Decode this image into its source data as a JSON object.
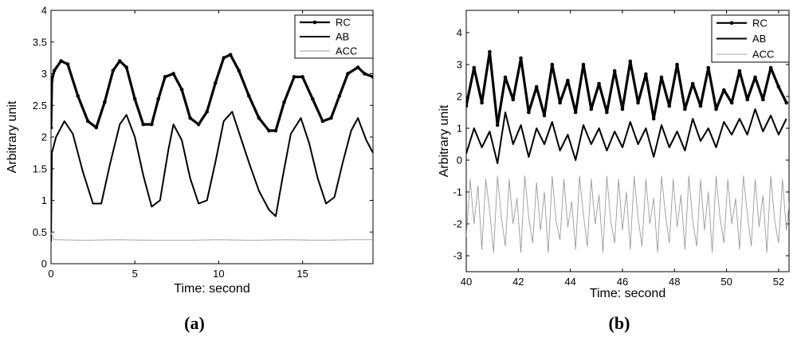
{
  "chart_data": [
    {
      "type": "line",
      "panel_label": "(a)",
      "xlabel": "Time: second",
      "ylabel": "Arbitrary unit",
      "xlim": [
        0,
        19.2
      ],
      "ylim": [
        0,
        4
      ],
      "xticks": [
        "0",
        "5",
        "10",
        "15"
      ],
      "yticks": [
        "0",
        "0.5",
        "1",
        "1.5",
        "2",
        "2.5",
        "3",
        "3.5",
        "4"
      ],
      "legend_position": "top-right",
      "series": [
        {
          "name": "RC",
          "style": "thick line with dot markers",
          "x": [
            0.0,
            0.05,
            0.2,
            0.6,
            1.0,
            1.6,
            2.2,
            2.7,
            3.2,
            3.7,
            4.1,
            4.5,
            5.0,
            5.5,
            6.0,
            6.4,
            6.8,
            7.3,
            7.8,
            8.3,
            8.8,
            9.3,
            9.8,
            10.3,
            10.7,
            11.2,
            11.8,
            12.4,
            13.0,
            13.4,
            13.9,
            14.5,
            15.0,
            15.6,
            16.2,
            16.7,
            17.2,
            17.7,
            18.3,
            18.7,
            19.2
          ],
          "values": [
            2.15,
            2.9,
            3.05,
            3.2,
            3.15,
            2.65,
            2.25,
            2.15,
            2.55,
            3.05,
            3.2,
            3.1,
            2.6,
            2.2,
            2.2,
            2.6,
            2.95,
            3.0,
            2.75,
            2.3,
            2.2,
            2.4,
            2.85,
            3.25,
            3.3,
            3.05,
            2.65,
            2.3,
            2.1,
            2.1,
            2.55,
            2.95,
            2.95,
            2.6,
            2.25,
            2.3,
            2.65,
            3.0,
            3.1,
            3.0,
            2.95
          ]
        },
        {
          "name": "AB",
          "style": "solid line",
          "x": [
            0.0,
            0.05,
            0.3,
            0.8,
            1.3,
            1.9,
            2.5,
            3.0,
            3.5,
            4.1,
            4.5,
            5.0,
            5.5,
            6.0,
            6.5,
            7.0,
            7.3,
            7.8,
            8.3,
            8.8,
            9.3,
            9.8,
            10.3,
            10.8,
            11.3,
            11.8,
            12.4,
            13.0,
            13.4,
            13.8,
            14.3,
            14.9,
            15.4,
            15.9,
            16.4,
            16.9,
            17.4,
            17.9,
            18.3,
            18.8,
            19.2
          ],
          "values": [
            0.35,
            1.75,
            2.0,
            2.25,
            2.05,
            1.45,
            0.95,
            0.95,
            1.55,
            2.2,
            2.35,
            2.0,
            1.4,
            0.9,
            1.0,
            1.8,
            2.2,
            1.95,
            1.35,
            0.95,
            1.0,
            1.6,
            2.25,
            2.4,
            2.0,
            1.6,
            1.15,
            0.85,
            0.75,
            1.35,
            2.05,
            2.3,
            1.9,
            1.35,
            0.95,
            1.05,
            1.6,
            2.1,
            2.3,
            1.95,
            1.75
          ]
        },
        {
          "name": "ACC",
          "style": "thin light line",
          "x": [
            0.0,
            0.05,
            0.2,
            2.0,
            4.0,
            6.0,
            8.0,
            10.0,
            12.0,
            14.0,
            16.0,
            18.0,
            19.2
          ],
          "values": [
            0.5,
            0.45,
            0.38,
            0.37,
            0.38,
            0.37,
            0.37,
            0.38,
            0.37,
            0.38,
            0.37,
            0.38,
            0.38
          ]
        }
      ]
    },
    {
      "type": "line",
      "panel_label": "(b)",
      "xlabel": "Time: second",
      "ylabel": "Arbitrary unit",
      "xlim": [
        40,
        52.4
      ],
      "ylim": [
        -3.5,
        4.7
      ],
      "xticks": [
        "40",
        "42",
        "44",
        "46",
        "48",
        "50",
        "52"
      ],
      "yticks": [
        "-3",
        "-2",
        "-1",
        "0",
        "1",
        "2",
        "3",
        "4"
      ],
      "legend_position": "top-right",
      "series": [
        {
          "name": "RC",
          "style": "thick line with dot markers",
          "x": [
            40.0,
            40.3,
            40.6,
            40.9,
            41.2,
            41.5,
            41.8,
            42.1,
            42.4,
            42.7,
            43.0,
            43.3,
            43.6,
            43.9,
            44.2,
            44.5,
            44.8,
            45.1,
            45.4,
            45.7,
            46.0,
            46.3,
            46.6,
            46.9,
            47.2,
            47.5,
            47.8,
            48.1,
            48.4,
            48.7,
            49.0,
            49.3,
            49.6,
            49.9,
            50.2,
            50.5,
            50.8,
            51.1,
            51.4,
            51.7,
            52.0,
            52.3
          ],
          "values": [
            1.7,
            2.9,
            1.8,
            3.4,
            1.1,
            2.6,
            1.9,
            3.2,
            1.5,
            2.3,
            1.4,
            3.0,
            1.8,
            2.5,
            1.5,
            3.0,
            1.6,
            2.4,
            1.5,
            2.8,
            1.6,
            3.1,
            1.8,
            2.7,
            1.3,
            2.6,
            1.7,
            3.0,
            1.6,
            2.4,
            1.7,
            2.9,
            1.6,
            2.2,
            1.8,
            2.8,
            1.9,
            2.6,
            1.9,
            2.9,
            2.3,
            1.8
          ]
        },
        {
          "name": "AB",
          "style": "solid line",
          "x": [
            40.0,
            40.3,
            40.6,
            40.9,
            41.2,
            41.5,
            41.8,
            42.1,
            42.4,
            42.7,
            43.0,
            43.3,
            43.6,
            43.9,
            44.2,
            44.5,
            44.8,
            45.1,
            45.4,
            45.7,
            46.0,
            46.3,
            46.6,
            46.9,
            47.2,
            47.5,
            47.8,
            48.1,
            48.4,
            48.7,
            49.0,
            49.3,
            49.6,
            49.9,
            50.2,
            50.5,
            50.8,
            51.1,
            51.4,
            51.7,
            52.0,
            52.3
          ],
          "values": [
            0.2,
            1.0,
            0.4,
            0.9,
            -0.1,
            1.5,
            0.5,
            1.1,
            0.1,
            1.0,
            0.5,
            1.2,
            0.3,
            0.8,
            0.0,
            1.1,
            0.5,
            1.0,
            0.3,
            0.9,
            0.4,
            1.2,
            0.5,
            1.0,
            0.1,
            1.1,
            0.4,
            0.9,
            0.3,
            1.3,
            0.6,
            1.0,
            0.4,
            1.2,
            0.8,
            1.3,
            0.8,
            1.6,
            0.9,
            1.4,
            0.8,
            1.3
          ]
        },
        {
          "name": "ACC",
          "style": "thin light line",
          "x_start": 40.0,
          "x_step": 0.15,
          "values": [
            -2.4,
            -0.6,
            -2.0,
            -0.8,
            -2.8,
            -0.6,
            -1.6,
            -2.9,
            -0.5,
            -1.8,
            -2.7,
            -0.6,
            -2.0,
            -1.2,
            -2.9,
            -0.5,
            -1.8,
            -2.6,
            -0.7,
            -2.2,
            -1.0,
            -2.9,
            -0.5,
            -1.9,
            -2.5,
            -0.6,
            -2.1,
            -1.3,
            -2.8,
            -0.5,
            -1.7,
            -2.7,
            -0.6,
            -2.0,
            -1.1,
            -2.9,
            -0.5,
            -1.9,
            -2.6,
            -0.6,
            -2.2,
            -1.0,
            -2.8,
            -0.5,
            -1.8,
            -2.7,
            -0.6,
            -2.0,
            -1.2,
            -2.9,
            -0.5,
            -1.7,
            -2.6,
            -0.6,
            -2.1,
            -1.1,
            -2.8,
            -0.5,
            -1.9,
            -2.7,
            -0.6,
            -2.2,
            -1.0,
            -2.9,
            -0.5,
            -1.8,
            -2.6,
            -0.6,
            -2.0,
            -1.2,
            -2.8,
            -0.5,
            -1.7,
            -2.7,
            -0.6,
            -2.1,
            -1.1,
            -2.9,
            -0.5,
            -1.9,
            -2.6,
            -0.6,
            -2.2,
            -1.0
          ]
        }
      ]
    }
  ]
}
